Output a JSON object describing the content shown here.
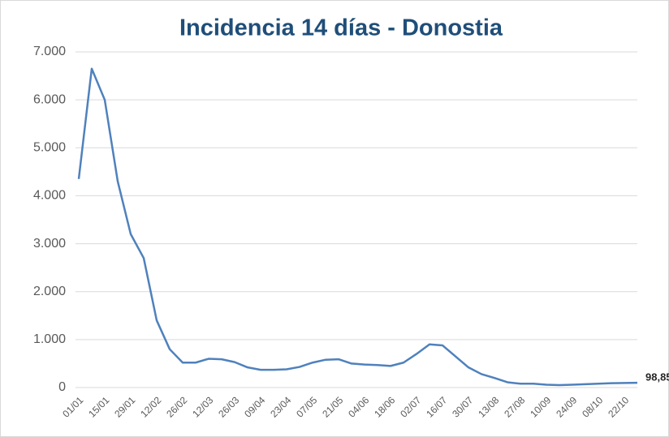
{
  "chart_data": {
    "type": "line",
    "title": "Incidencia 14 días - Donostia",
    "categories": [
      "01/01",
      null,
      "15/01",
      null,
      "29/01",
      null,
      "12/02",
      null,
      "26/02",
      null,
      "12/03",
      null,
      "26/03",
      null,
      "09/04",
      null,
      "23/04",
      null,
      "07/05",
      null,
      "21/05",
      null,
      "04/06",
      null,
      "18/06",
      null,
      "02/07",
      null,
      "16/07",
      null,
      "30/07",
      null,
      "13/08",
      null,
      "27/08",
      null,
      "10/09",
      null,
      "24/09",
      null,
      "08/10",
      null,
      "22/10",
      null
    ],
    "series": [
      {
        "name": "Incidencia 14 días",
        "color": "#4f81bd",
        "values": [
          4350,
          6650,
          6000,
          4300,
          3200,
          2700,
          1400,
          800,
          520,
          520,
          600,
          590,
          530,
          420,
          370,
          370,
          380,
          430,
          520,
          580,
          590,
          500,
          480,
          470,
          450,
          520,
          700,
          900,
          880,
          650,
          420,
          280,
          200,
          110,
          80,
          80,
          60,
          50,
          60,
          70,
          80,
          90,
          95,
          98.85
        ],
        "value_labels": [
          null,
          null,
          null,
          null,
          null,
          null,
          null,
          null,
          null,
          null,
          null,
          null,
          null,
          null,
          null,
          null,
          null,
          null,
          null,
          null,
          null,
          null,
          null,
          null,
          null,
          null,
          null,
          null,
          null,
          null,
          null,
          null,
          null,
          null,
          null,
          null,
          null,
          null,
          null,
          null,
          null,
          null,
          null,
          "98,85"
        ]
      }
    ],
    "ylim": [
      0,
      7000
    ],
    "yticks": [
      0,
      {
        "value": 1000,
        "label": "1.000"
      },
      {
        "value": 2000,
        "label": "2.000"
      },
      {
        "value": 3000,
        "label": "3.000"
      },
      {
        "value": 4000,
        "label": "4.000"
      },
      {
        "value": 5000,
        "label": "5.000"
      },
      {
        "value": 6000,
        "label": "6.000"
      },
      {
        "value": 7000,
        "label": "7.000"
      }
    ],
    "grid": true
  }
}
